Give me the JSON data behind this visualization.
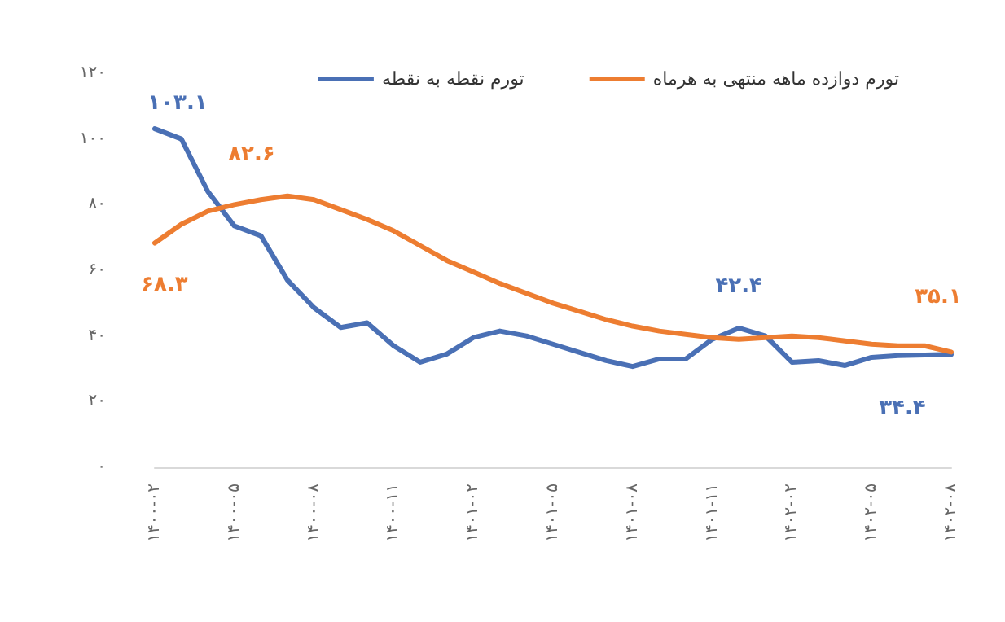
{
  "chart_data": {
    "type": "line",
    "categories": [
      "۱۴۰۰-۰۲",
      null,
      null,
      "۱۴۰۰-۰۵",
      null,
      null,
      "۱۴۰۰-۰۸",
      null,
      null,
      "۱۴۰۰-۱۱",
      null,
      null,
      "۱۴۰۱-۰۲",
      null,
      null,
      "۱۴۰۱-۰۵",
      null,
      null,
      "۱۴۰۱-۰۸",
      null,
      null,
      "۱۴۰۱-۱۱",
      null,
      null,
      "۱۴۰۲-۰۲",
      null,
      null,
      "۱۴۰۲-۰۵",
      null,
      null,
      "۱۴۰۲-۰۸"
    ],
    "series": [
      {
        "name": "تورم نقطه به نقطه",
        "color": "#4a70b5",
        "values": [
          103.1,
          100,
          84,
          73.5,
          70.5,
          57,
          48.6,
          42.6,
          44,
          37,
          32,
          34.5,
          39.5,
          41.5,
          40,
          37.5,
          35,
          32.5,
          30.7,
          33,
          33,
          39,
          42.4,
          40,
          32,
          32.5,
          31,
          33.5,
          34,
          34.2,
          34.4
        ],
        "value_labels": [
          "۱۰۳.۱",
          null,
          null,
          null,
          null,
          null,
          null,
          null,
          null,
          null,
          null,
          null,
          null,
          null,
          null,
          null,
          null,
          null,
          null,
          null,
          null,
          null,
          "۴۲.۴",
          null,
          null,
          null,
          null,
          null,
          null,
          null,
          "۳۴.۴"
        ]
      },
      {
        "name": "تورم دوازده ماهه منتهی به هرماه",
        "color": "#ed7d31",
        "values": [
          68.3,
          74,
          78,
          80,
          81.5,
          82.6,
          81.5,
          78.5,
          75.5,
          72,
          67.5,
          63,
          59.5,
          56,
          53,
          50,
          47.5,
          45,
          43,
          41.5,
          40.5,
          39.5,
          39,
          39.5,
          40,
          39.5,
          38.5,
          37.5,
          37,
          37,
          35.1
        ],
        "value_labels": [
          "۶۸.۳",
          null,
          null,
          null,
          null,
          "۸۲.۶",
          null,
          null,
          null,
          null,
          null,
          null,
          null,
          null,
          null,
          null,
          null,
          null,
          null,
          null,
          null,
          null,
          null,
          null,
          null,
          null,
          null,
          null,
          null,
          null,
          "۳۵.۱"
        ]
      }
    ],
    "ylim": [
      0,
      120
    ],
    "yticks": [
      {
        "value": 0,
        "label": "۰"
      },
      {
        "value": 20,
        "label": "۲۰"
      },
      {
        "value": 40,
        "label": "۴۰"
      },
      {
        "value": 60,
        "label": "۶۰"
      },
      {
        "value": 80,
        "label": "۸۰"
      },
      {
        "value": 100,
        "label": "۱۰۰"
      },
      {
        "value": 120,
        "label": "۱۲۰"
      }
    ],
    "grid": false,
    "legend": "top right",
    "marker": "none",
    "line_style": "solid"
  }
}
